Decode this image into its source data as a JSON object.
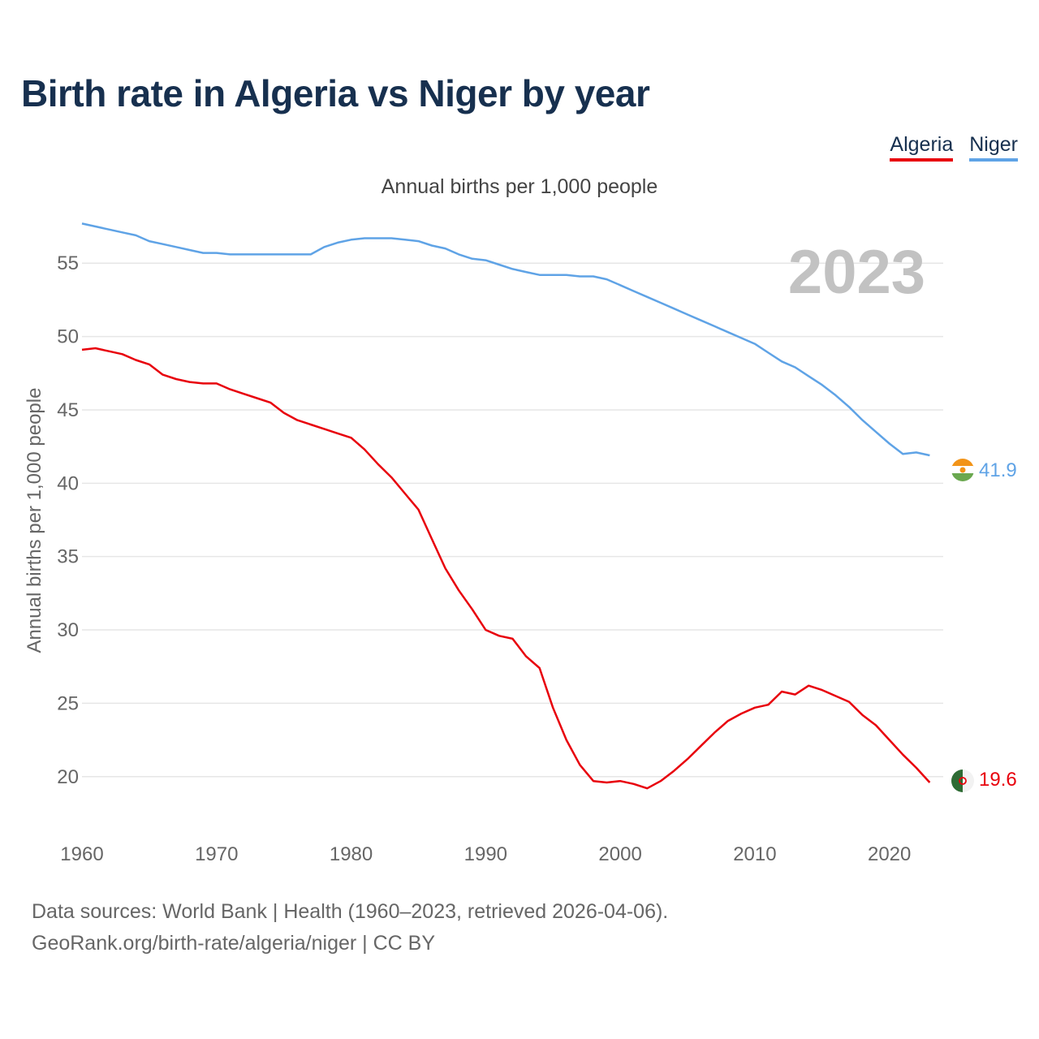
{
  "header": {
    "title": "Birth rate in Algeria vs Niger by year",
    "subtitle": "Annual births per 1,000 people"
  },
  "legend": [
    {
      "label": "Algeria",
      "color": "#e8000b"
    },
    {
      "label": "Niger",
      "color": "#5fa3e6"
    }
  ],
  "chart_data": {
    "type": "line",
    "ylabel": "Annual births per 1,000 people",
    "xlim": [
      1960,
      2023
    ],
    "ylim": [
      17,
      58
    ],
    "xticks": [
      1960,
      1970,
      1980,
      1990,
      2000,
      2010,
      2020
    ],
    "yticks": [
      20,
      25,
      30,
      35,
      40,
      45,
      50,
      55
    ],
    "grid": true,
    "legend_position": "top-right",
    "year_label": "2023",
    "series": [
      {
        "name": "Algeria",
        "color": "#e8000b",
        "end_value": "19.6",
        "points": [
          [
            1960,
            49.1
          ],
          [
            1961,
            49.2
          ],
          [
            1962,
            49.0
          ],
          [
            1963,
            48.8
          ],
          [
            1964,
            48.4
          ],
          [
            1965,
            48.1
          ],
          [
            1966,
            47.4
          ],
          [
            1967,
            47.1
          ],
          [
            1968,
            46.9
          ],
          [
            1969,
            46.8
          ],
          [
            1970,
            46.8
          ],
          [
            1971,
            46.4
          ],
          [
            1972,
            46.1
          ],
          [
            1973,
            45.8
          ],
          [
            1974,
            45.5
          ],
          [
            1975,
            44.8
          ],
          [
            1976,
            44.3
          ],
          [
            1977,
            44.0
          ],
          [
            1978,
            43.7
          ],
          [
            1979,
            43.4
          ],
          [
            1980,
            43.1
          ],
          [
            1981,
            42.3
          ],
          [
            1982,
            41.3
          ],
          [
            1983,
            40.4
          ],
          [
            1984,
            39.3
          ],
          [
            1985,
            38.2
          ],
          [
            1986,
            36.2
          ],
          [
            1987,
            34.2
          ],
          [
            1988,
            32.7
          ],
          [
            1989,
            31.4
          ],
          [
            1990,
            30.0
          ],
          [
            1991,
            29.6
          ],
          [
            1992,
            29.4
          ],
          [
            1993,
            28.2
          ],
          [
            1994,
            27.4
          ],
          [
            1995,
            24.7
          ],
          [
            1996,
            22.5
          ],
          [
            1997,
            20.8
          ],
          [
            1998,
            19.7
          ],
          [
            1999,
            19.6
          ],
          [
            2000,
            19.7
          ],
          [
            2001,
            19.5
          ],
          [
            2002,
            19.2
          ],
          [
            2003,
            19.7
          ],
          [
            2004,
            20.4
          ],
          [
            2005,
            21.2
          ],
          [
            2006,
            22.1
          ],
          [
            2007,
            23.0
          ],
          [
            2008,
            23.8
          ],
          [
            2009,
            24.3
          ],
          [
            2010,
            24.7
          ],
          [
            2011,
            24.9
          ],
          [
            2012,
            25.8
          ],
          [
            2013,
            25.6
          ],
          [
            2014,
            26.2
          ],
          [
            2015,
            25.9
          ],
          [
            2016,
            25.5
          ],
          [
            2017,
            25.1
          ],
          [
            2018,
            24.2
          ],
          [
            2019,
            23.5
          ],
          [
            2020,
            22.5
          ],
          [
            2021,
            21.5
          ],
          [
            2022,
            20.6
          ],
          [
            2023,
            19.6
          ]
        ]
      },
      {
        "name": "Niger",
        "color": "#5fa3e6",
        "end_value": "41.9",
        "points": [
          [
            1960,
            57.7
          ],
          [
            1961,
            57.5
          ],
          [
            1962,
            57.3
          ],
          [
            1963,
            57.1
          ],
          [
            1964,
            56.9
          ],
          [
            1965,
            56.5
          ],
          [
            1966,
            56.3
          ],
          [
            1967,
            56.1
          ],
          [
            1968,
            55.9
          ],
          [
            1969,
            55.7
          ],
          [
            1970,
            55.7
          ],
          [
            1971,
            55.6
          ],
          [
            1972,
            55.6
          ],
          [
            1973,
            55.6
          ],
          [
            1974,
            55.6
          ],
          [
            1975,
            55.6
          ],
          [
            1976,
            55.6
          ],
          [
            1977,
            55.6
          ],
          [
            1978,
            56.1
          ],
          [
            1979,
            56.4
          ],
          [
            1980,
            56.6
          ],
          [
            1981,
            56.7
          ],
          [
            1982,
            56.7
          ],
          [
            1983,
            56.7
          ],
          [
            1984,
            56.6
          ],
          [
            1985,
            56.5
          ],
          [
            1986,
            56.2
          ],
          [
            1987,
            56.0
          ],
          [
            1988,
            55.6
          ],
          [
            1989,
            55.3
          ],
          [
            1990,
            55.2
          ],
          [
            1991,
            54.9
          ],
          [
            1992,
            54.6
          ],
          [
            1993,
            54.4
          ],
          [
            1994,
            54.2
          ],
          [
            1995,
            54.2
          ],
          [
            1996,
            54.2
          ],
          [
            1997,
            54.1
          ],
          [
            1998,
            54.1
          ],
          [
            1999,
            53.9
          ],
          [
            2000,
            53.5
          ],
          [
            2001,
            53.1
          ],
          [
            2002,
            52.7
          ],
          [
            2003,
            52.3
          ],
          [
            2004,
            51.9
          ],
          [
            2005,
            51.5
          ],
          [
            2006,
            51.1
          ],
          [
            2007,
            50.7
          ],
          [
            2008,
            50.3
          ],
          [
            2009,
            49.9
          ],
          [
            2010,
            49.5
          ],
          [
            2011,
            48.9
          ],
          [
            2012,
            48.3
          ],
          [
            2013,
            47.9
          ],
          [
            2014,
            47.3
          ],
          [
            2015,
            46.7
          ],
          [
            2016,
            46.0
          ],
          [
            2017,
            45.2
          ],
          [
            2018,
            44.3
          ],
          [
            2019,
            43.5
          ],
          [
            2020,
            42.7
          ],
          [
            2021,
            42.0
          ],
          [
            2022,
            42.1
          ],
          [
            2023,
            41.9
          ]
        ]
      }
    ]
  },
  "footer": {
    "line1": "Data sources: World Bank | Health (1960–2023, retrieved 2026-04-06).",
    "line2": "GeoRank.org/birth-rate/algeria/niger | CC BY"
  }
}
